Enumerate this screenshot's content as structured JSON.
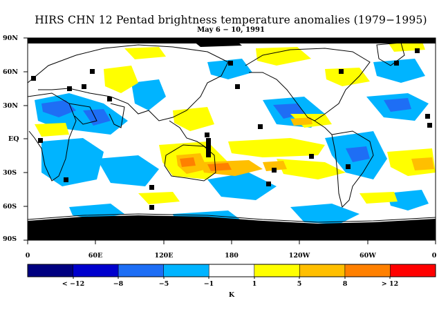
{
  "title": "HIRS CHN 12 Pentad brightness temperature anomalies (1979−1995)",
  "subtitle": "May 6 − 10, 1991",
  "lat_labels": [
    "90N",
    "60N",
    "30N",
    "EQ",
    "30S",
    "60S",
    "90S"
  ],
  "lon_labels": [
    "0",
    "60E",
    "120E",
    "180",
    "120W",
    "60W",
    "0"
  ],
  "colorbar": {
    "colors": [
      "#000080",
      "#0000cd",
      "#1e6ef5",
      "#00b4ff",
      "#ffffff",
      "#ffff00",
      "#ffbf00",
      "#ff8000",
      "#ff0000"
    ],
    "labels": [
      "< −12",
      "−8",
      "−5",
      "−1",
      "1",
      "5",
      "8",
      "> 12"
    ],
    "unit": "K"
  },
  "map": {
    "land_color": "#000000",
    "missing_data_color": "#000000"
  }
}
